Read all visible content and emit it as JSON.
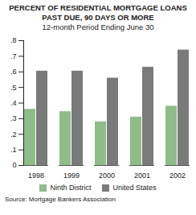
{
  "chart_data": {
    "type": "bar",
    "title": "PERCENT OF RESIDENTIAL MORTGAGE LOANS PAST DUE, 90 DAYS OR MORE",
    "subtitle": "12-month Period Ending June 30",
    "source": "Source: Mortgage Bankers Association",
    "categories": [
      "1998",
      "1999",
      "2000",
      "2001",
      "2002"
    ],
    "series": [
      {
        "name": "Ninth District",
        "color": "#8fbc8a",
        "values": [
          0.36,
          0.345,
          0.28,
          0.31,
          0.38
        ]
      },
      {
        "name": "United States",
        "color": "#7a7a7a",
        "values": [
          0.605,
          0.605,
          0.56,
          0.63,
          0.74
        ]
      }
    ],
    "ylim": [
      0,
      0.8
    ],
    "yticks": [
      0,
      {
        "value": 0.1,
        "label": ".1"
      },
      {
        "value": 0.2,
        "label": ".2"
      },
      {
        "value": 0.3,
        "label": ".3"
      },
      {
        "value": 0.4,
        "label": ".4"
      },
      {
        "value": 0.5,
        "label": ".5"
      },
      {
        "value": 0.6,
        "label": ".6"
      },
      {
        "value": 0.7,
        "label": ".7"
      },
      {
        "value": 0.8,
        "label": ".8"
      }
    ],
    "grid": false,
    "legend": "bottom"
  }
}
